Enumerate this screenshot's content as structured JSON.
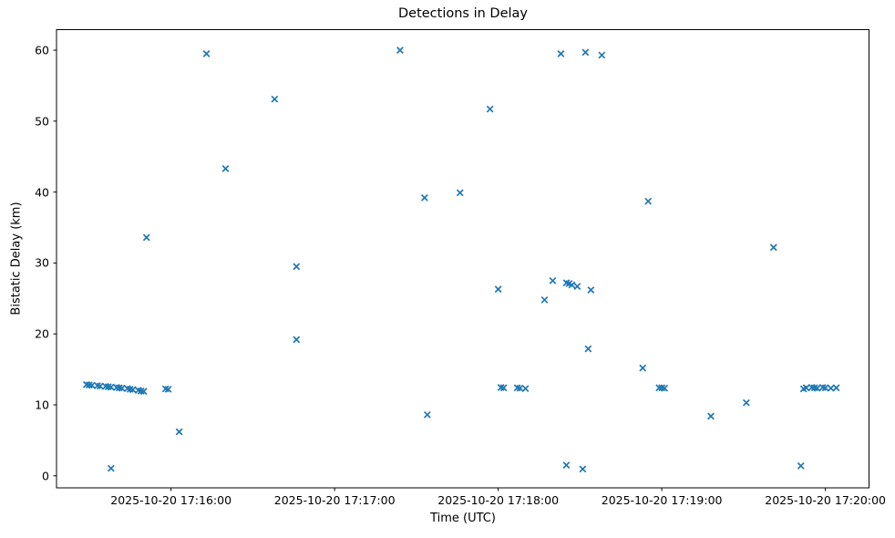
{
  "figure": {
    "title": "Detections in Delay",
    "xlabel": "Time (UTC)",
    "ylabel": "Bistatic Delay (km)"
  },
  "chart_data": {
    "type": "scatter",
    "title": "Detections in Delay",
    "xlabel": "Time (UTC)",
    "ylabel": "Bistatic Delay (km)",
    "marker": "x",
    "marker_color": "#1f77b4",
    "text_color": "#000000",
    "grid": false,
    "legend": null,
    "date": "2025-10-20",
    "xlim": [
      "2025-10-20 17:15:18",
      "2025-10-20 17:20:16"
    ],
    "ylim": [
      -1.7,
      62.9
    ],
    "x_ticks": [
      "2025-10-20 17:16:00",
      "2025-10-20 17:17:00",
      "2025-10-20 17:18:00",
      "2025-10-20 17:19:00",
      "2025-10-20 17:20:00"
    ],
    "y_ticks": [
      0,
      10,
      20,
      30,
      40,
      50,
      60
    ],
    "point_fields": [
      "time_utc",
      "bistatic_delay_km"
    ],
    "points": [
      [
        "17:15:29",
        12.85
      ],
      [
        "17:15:30",
        12.8
      ],
      [
        "17:15:31",
        12.75
      ],
      [
        "17:15:33",
        12.7
      ],
      [
        "17:15:34",
        12.65
      ],
      [
        "17:15:36",
        12.6
      ],
      [
        "17:15:37",
        12.55
      ],
      [
        "17:15:38",
        12.5
      ],
      [
        "17:15:40",
        12.45
      ],
      [
        "17:15:41",
        12.4
      ],
      [
        "17:15:42",
        12.35
      ],
      [
        "17:15:44",
        12.3
      ],
      [
        "17:15:45",
        12.2
      ],
      [
        "17:15:46",
        12.15
      ],
      [
        "17:15:48",
        12.05
      ],
      [
        "17:15:49",
        11.95
      ],
      [
        "17:15:50",
        11.9
      ],
      [
        "17:15:38",
        1.05
      ],
      [
        "17:15:51",
        33.6
      ],
      [
        "17:15:58",
        12.25
      ],
      [
        "17:15:59",
        12.2
      ],
      [
        "17:16:03",
        6.2
      ],
      [
        "17:16:13",
        59.5
      ],
      [
        "17:16:20",
        43.3
      ],
      [
        "17:16:38",
        53.1
      ],
      [
        "17:16:46",
        29.5
      ],
      [
        "17:16:46",
        19.2
      ],
      [
        "17:17:24",
        60.0
      ],
      [
        "17:17:33",
        39.2
      ],
      [
        "17:17:34",
        8.6
      ],
      [
        "17:17:46",
        39.9
      ],
      [
        "17:17:57",
        51.7
      ],
      [
        "17:18:00",
        26.3
      ],
      [
        "17:18:01",
        12.45
      ],
      [
        "17:18:02",
        12.4
      ],
      [
        "17:18:07",
        12.4
      ],
      [
        "17:18:08",
        12.35
      ],
      [
        "17:18:10",
        12.3
      ],
      [
        "17:18:17",
        24.8
      ],
      [
        "17:18:20",
        27.5
      ],
      [
        "17:18:23",
        59.5
      ],
      [
        "17:18:25",
        27.2
      ],
      [
        "17:18:26",
        27.1
      ],
      [
        "17:18:27",
        26.9
      ],
      [
        "17:18:29",
        26.7
      ],
      [
        "17:18:25",
        1.5
      ],
      [
        "17:18:31",
        0.95
      ],
      [
        "17:18:32",
        59.7
      ],
      [
        "17:18:33",
        17.9
      ],
      [
        "17:18:34",
        26.2
      ],
      [
        "17:18:38",
        59.3
      ],
      [
        "17:18:53",
        15.2
      ],
      [
        "17:18:55",
        38.7
      ],
      [
        "17:18:59",
        12.4
      ],
      [
        "17:19:00",
        12.4
      ],
      [
        "17:19:01",
        12.35
      ],
      [
        "17:19:18",
        8.4
      ],
      [
        "17:19:31",
        10.3
      ],
      [
        "17:19:41",
        32.2
      ],
      [
        "17:19:51",
        1.4
      ],
      [
        "17:19:52",
        12.25
      ],
      [
        "17:19:53",
        12.4
      ],
      [
        "17:19:55",
        12.45
      ],
      [
        "17:19:56",
        12.4
      ],
      [
        "17:19:57",
        12.35
      ],
      [
        "17:19:59",
        12.45
      ],
      [
        "17:20:00",
        12.4
      ],
      [
        "17:20:02",
        12.35
      ],
      [
        "17:20:04",
        12.4
      ]
    ]
  }
}
